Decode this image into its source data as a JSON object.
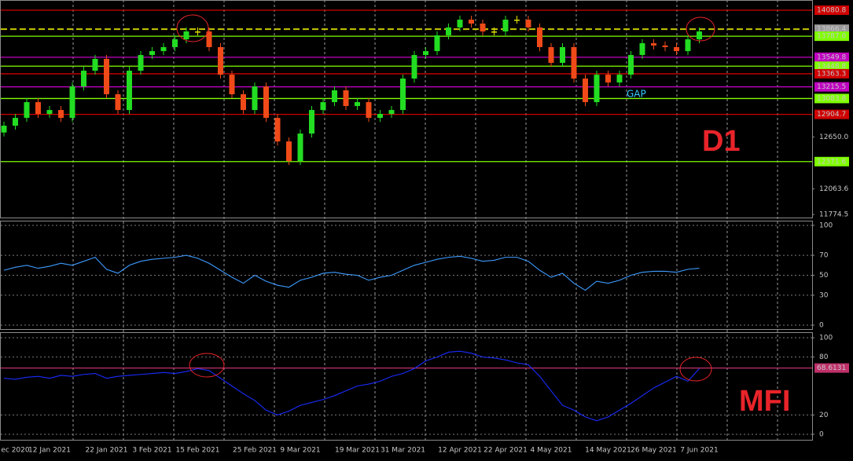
{
  "chart_data": [
    {
      "type": "candlestick",
      "categories": [
        null,
        "ec 2020",
        null,
        null,
        "12 Jan 2021",
        null,
        null,
        null,
        null,
        "22 Jan 2021",
        null,
        null,
        null,
        "3 Feb 2021",
        null,
        null,
        null,
        "15 Feb 2021",
        null,
        null,
        null,
        null,
        "25 Feb 2021",
        null,
        null,
        null,
        "9 Mar 2021",
        null,
        null,
        null,
        null,
        "19 Mar 2021",
        null,
        null,
        null,
        "31 Mar 2021",
        null,
        null,
        null,
        null,
        "12 Apr 2021",
        null,
        null,
        null,
        "22 Apr 2021",
        null,
        null,
        null,
        "4 May 2021",
        null,
        null,
        null,
        null,
        "14 May 2021",
        null,
        null,
        null,
        "26 May 2021",
        null,
        null,
        null,
        "7 Jun 2021"
      ],
      "open": [
        12700,
        12777,
        12865,
        13043,
        12910,
        12954,
        12865,
        13220,
        13398,
        13531,
        13132,
        12954,
        13398,
        13575,
        13619,
        13664,
        13752,
        13841,
        13841,
        13664,
        13353,
        13132,
        12954,
        13220,
        12865,
        12599,
        12378,
        12688,
        12954,
        13043,
        13176,
        12999,
        13043,
        12865,
        12910,
        12954,
        13309,
        13575,
        13619,
        13797,
        13886,
        13974,
        13930,
        13841,
        13841,
        13974,
        13974,
        13886,
        13664,
        13486,
        13664,
        13309,
        13043,
        13353,
        13265,
        13353,
        13575,
        13708,
        13682,
        13664,
        13619,
        13752
      ],
      "high": [
        12822,
        12910,
        13088,
        13088,
        12999,
        12999,
        13265,
        13443,
        13576,
        13576,
        13177,
        13443,
        13620,
        13664,
        13709,
        13797,
        13886,
        13886,
        13886,
        13709,
        13398,
        13177,
        13265,
        13265,
        12910,
        12644,
        12733,
        12999,
        13088,
        13221,
        13221,
        13088,
        13088,
        12955,
        12999,
        13354,
        13620,
        13664,
        13842,
        13931,
        14019,
        14019,
        13975,
        13886,
        14019,
        14019,
        14019,
        13931,
        13709,
        13709,
        13709,
        13354,
        13398,
        13398,
        13398,
        13620,
        13753,
        13753,
        13727,
        13709,
        13797,
        13886
      ],
      "low": [
        12655,
        12732,
        12820,
        12865,
        12865,
        12820,
        12820,
        13175,
        13353,
        13087,
        12909,
        12909,
        13353,
        13530,
        13574,
        13619,
        13707,
        13796,
        13619,
        13308,
        13087,
        12909,
        12909,
        12820,
        12554,
        12333,
        12333,
        12643,
        12909,
        12998,
        12954,
        12954,
        12820,
        12820,
        12865,
        12909,
        13264,
        13530,
        13574,
        13752,
        13841,
        13885,
        13796,
        13796,
        13796,
        13929,
        13841,
        13619,
        13441,
        13441,
        13264,
        12998,
        12998,
        13220,
        13220,
        13308,
        13530,
        13637,
        13619,
        13574,
        13574,
        13707
      ],
      "close": [
        12777,
        12865,
        13043,
        12910,
        12954,
        12865,
        13220,
        13398,
        13531,
        13132,
        12954,
        13398,
        13575,
        13619,
        13664,
        13752,
        13841,
        13841,
        13664,
        13353,
        13132,
        12954,
        13220,
        12865,
        12599,
        12378,
        12688,
        12954,
        13043,
        13176,
        12999,
        13043,
        12865,
        12910,
        12954,
        13309,
        13575,
        13619,
        13797,
        13886,
        13974,
        13930,
        13841,
        13841,
        13974,
        13974,
        13886,
        13664,
        13486,
        13664,
        13309,
        13043,
        13353,
        13265,
        13353,
        13575,
        13708,
        13682,
        13664,
        13619,
        13752,
        13841
      ],
      "up_color": "#22dd22",
      "down_color": "#f04a18",
      "flat_color": "#e0e000",
      "ylim": [
        11740,
        14196
      ],
      "yticks": [
        {
          "value": 12650,
          "label": "12650.0"
        },
        12063.6,
        11774.5
      ],
      "levels": [
        {
          "value": 14080.8,
          "color": "#d00000"
        },
        {
          "value": 13866.4,
          "color": "#c8c800",
          "style": "dashed"
        },
        {
          "value": 13787,
          "label": "13787.0",
          "color": "#7fff00"
        },
        {
          "value": 13549.8,
          "color": "#c000c0"
        },
        {
          "value": 13448.8,
          "color": "#7fff00"
        },
        {
          "value": 13363.3,
          "color": "#d00000"
        },
        {
          "value": 13215.5,
          "color": "#c000c0"
        },
        {
          "value": 13083.8,
          "color": "#7fff00"
        },
        {
          "value": 12904.7,
          "color": "#d00000"
        },
        {
          "value": 12371.6,
          "color": "#7fff00"
        }
      ],
      "annotations": [
        "D1",
        "GAP"
      ]
    },
    {
      "type": "line",
      "values": [
        55,
        58,
        60,
        57,
        59,
        62,
        60,
        64,
        68,
        56,
        52,
        60,
        64,
        66,
        67,
        68,
        70,
        67,
        62,
        55,
        48,
        42,
        50,
        44,
        40,
        38,
        45,
        48,
        52,
        53,
        51,
        50,
        45,
        48,
        50,
        55,
        60,
        63,
        66,
        68,
        69,
        67,
        64,
        65,
        68,
        68,
        64,
        55,
        48,
        52,
        42,
        35,
        44,
        42,
        45,
        50,
        53,
        54,
        54,
        53,
        56,
        57
      ],
      "color": "#3d9bff",
      "ylim": [
        -4.7,
        103.9
      ],
      "yticks": [
        100,
        70,
        50,
        30,
        0
      ],
      "grid": true
    },
    {
      "type": "line",
      "values": [
        58,
        57,
        59,
        60,
        58,
        61,
        60,
        62,
        63,
        58,
        60,
        61,
        62,
        63,
        64,
        63,
        65,
        68,
        66,
        58,
        50,
        42,
        35,
        25,
        20,
        24,
        30,
        33,
        36,
        40,
        45,
        50,
        52,
        55,
        60,
        63,
        68,
        76,
        80,
        85,
        86,
        84,
        80,
        79,
        77,
        74,
        72,
        60,
        45,
        30,
        25,
        18,
        14,
        18,
        25,
        32,
        40,
        48,
        54,
        60,
        55,
        68
      ],
      "color": "#1a2cff",
      "ylim": [
        -5.7,
        104.9
      ],
      "yticks": [
        100,
        80,
        20,
        0
      ],
      "grid": true,
      "levels": [
        {
          "value": 68.6131,
          "color": "#c0306a"
        }
      ],
      "annotations": [
        "MFI"
      ]
    }
  ]
}
